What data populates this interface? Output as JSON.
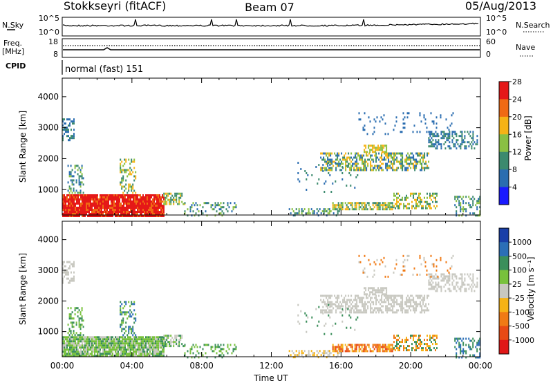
{
  "header": {
    "station": "Stokkseyri (fitACF)",
    "beam": "Beam 07",
    "date": "05/Aug/2013"
  },
  "chart_data": [
    {
      "type": "line",
      "name": "nsky-nsearch",
      "left_label": "N.Sky",
      "right_label": "N.Search",
      "left_ticks": [
        "10^5",
        "10^0"
      ],
      "right_ticks": [
        "10^5",
        "10^0"
      ]
    },
    {
      "type": "line",
      "name": "freq-nave",
      "left_label_top": "Freq.",
      "left_label_unit": "[MHz]",
      "left_ticks": [
        "18",
        "8"
      ],
      "right_label": "Nave",
      "right_ticks": [
        "60",
        "0"
      ],
      "cpid_label": "CPID",
      "cpid_text": "normal (fast) 151"
    },
    {
      "type": "heatmap",
      "name": "power",
      "ylabel": "Slant Range [km]",
      "yticks": [
        1000,
        2000,
        3000,
        4000
      ],
      "ylim": [
        180,
        4600
      ],
      "colorbar_label": "Power [dB]",
      "colorbar_ticks": [
        "4",
        "8",
        "12",
        "16",
        "20",
        "24",
        "28"
      ],
      "colors": [
        "#1a1aff",
        "#2a6db0",
        "#3c8a6e",
        "#8ac043",
        "#f6b316",
        "#f06a14",
        "#e51818"
      ]
    },
    {
      "type": "heatmap",
      "name": "velocity",
      "ylabel": "Slant Range [km]",
      "yticks": [
        1000,
        2000,
        3000,
        4000
      ],
      "ylim": [
        180,
        4600
      ],
      "colorbar_label": "Velocity [m s⁻¹]",
      "colorbar_ticks": [
        "1000",
        "500",
        "100",
        "25",
        "-25",
        "-100",
        "-500",
        "-1000"
      ],
      "colors": [
        "#1a3fa8",
        "#2c6fb7",
        "#3b8f5b",
        "#78c13c",
        "#c8c8c0",
        "#f6b316",
        "#f07a14",
        "#e84a14",
        "#e01818"
      ],
      "xlabel": "Time UT",
      "xticks": [
        "00:00",
        "04:00",
        "08:00",
        "12:00",
        "16:00",
        "20:00",
        "00:00"
      ]
    }
  ]
}
